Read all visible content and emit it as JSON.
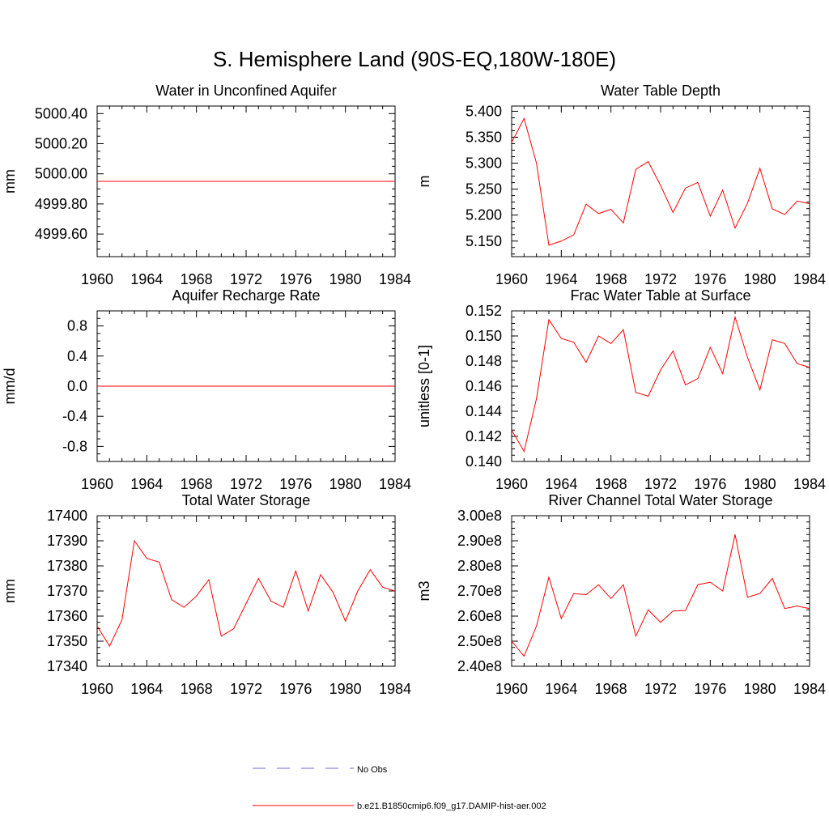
{
  "figure": {
    "title": "S. Hemisphere Land (90S-EQ,180W-180E)"
  },
  "legend": {
    "entries": [
      {
        "label": "No Obs",
        "style": "dashed",
        "color": "#6b6bd6"
      },
      {
        "label": "b.e21.B1850cmip6.f09_g17.DAMIP-hist-aer.002",
        "style": "solid",
        "color": "#ff0000"
      }
    ]
  },
  "chart_data": [
    {
      "type": "line",
      "title": "Water in Unconfined Aquifer",
      "ylabel": "mm",
      "xlim": [
        1960,
        1984
      ],
      "ylim": [
        4999.45,
        5000.45
      ],
      "xticks": [
        "1960",
        "1964",
        "1968",
        "1972",
        "1976",
        "1980",
        "1984"
      ],
      "yticks": [
        {
          "v": 4999.6,
          "label": "4999.60"
        },
        {
          "v": 4999.8,
          "label": "4999.80"
        },
        {
          "v": 5000.0,
          "label": "5000.00"
        },
        {
          "v": 5000.2,
          "label": "5000.20"
        },
        {
          "v": 5000.4,
          "label": "5000.40"
        }
      ],
      "series": [
        {
          "color": "#ff0000",
          "x": [
            1960,
            1984
          ],
          "y": [
            4999.95,
            4999.95
          ]
        }
      ]
    },
    {
      "type": "line",
      "title": "Water Table Depth",
      "ylabel": "m",
      "xlim": [
        1960,
        1984
      ],
      "ylim": [
        5.12,
        5.41
      ],
      "xticks": [
        "1960",
        "1964",
        "1968",
        "1972",
        "1976",
        "1980",
        "1984"
      ],
      "yticks": [
        {
          "v": 5.15,
          "label": "5.150"
        },
        {
          "v": 5.2,
          "label": "5.200"
        },
        {
          "v": 5.25,
          "label": "5.250"
        },
        {
          "v": 5.3,
          "label": "5.300"
        },
        {
          "v": 5.35,
          "label": "5.350"
        },
        {
          "v": 5.4,
          "label": "5.400"
        }
      ],
      "series": [
        {
          "color": "#ff0000",
          "x": [
            1960,
            1961,
            1962,
            1963,
            1964,
            1965,
            1966,
            1967,
            1968,
            1969,
            1970,
            1971,
            1972,
            1973,
            1974,
            1975,
            1976,
            1977,
            1978,
            1979,
            1980,
            1981,
            1982,
            1983,
            1984
          ],
          "y": [
            5.34,
            5.386,
            5.3,
            5.142,
            5.15,
            5.162,
            5.221,
            5.203,
            5.211,
            5.185,
            5.288,
            5.303,
            5.257,
            5.205,
            5.252,
            5.263,
            5.198,
            5.248,
            5.175,
            5.223,
            5.29,
            5.212,
            5.201,
            5.227,
            5.222
          ]
        }
      ]
    },
    {
      "type": "line",
      "title": "Aquifer Recharge Rate",
      "ylabel": "mm/d",
      "xlim": [
        1960,
        1984
      ],
      "ylim": [
        -1.0,
        1.0
      ],
      "xticks": [
        "1960",
        "1964",
        "1968",
        "1972",
        "1976",
        "1980",
        "1984"
      ],
      "yticks": [
        {
          "v": -0.8,
          "label": "-0.8"
        },
        {
          "v": -0.4,
          "label": "-0.4"
        },
        {
          "v": 0.0,
          "label": "0.0"
        },
        {
          "v": 0.4,
          "label": "0.4"
        },
        {
          "v": 0.8,
          "label": "0.8"
        }
      ],
      "series": [
        {
          "color": "#ff0000",
          "x": [
            1960,
            1984
          ],
          "y": [
            0.0,
            0.0
          ]
        }
      ]
    },
    {
      "type": "line",
      "title": "Frac Water Table at Surface",
      "ylabel": "unitless [0-1]",
      "xlim": [
        1960,
        1984
      ],
      "ylim": [
        0.14,
        0.152
      ],
      "xticks": [
        "1960",
        "1964",
        "1968",
        "1972",
        "1976",
        "1980",
        "1984"
      ],
      "yticks": [
        {
          "v": 0.14,
          "label": "0.140"
        },
        {
          "v": 0.142,
          "label": "0.142"
        },
        {
          "v": 0.144,
          "label": "0.144"
        },
        {
          "v": 0.146,
          "label": "0.146"
        },
        {
          "v": 0.148,
          "label": "0.148"
        },
        {
          "v": 0.15,
          "label": "0.150"
        },
        {
          "v": 0.152,
          "label": "0.152"
        }
      ],
      "series": [
        {
          "color": "#ff0000",
          "x": [
            1960,
            1961,
            1962,
            1963,
            1964,
            1965,
            1966,
            1967,
            1968,
            1969,
            1970,
            1971,
            1972,
            1973,
            1974,
            1975,
            1976,
            1977,
            1978,
            1979,
            1980,
            1981,
            1982,
            1983,
            1984
          ],
          "y": [
            0.1425,
            0.1408,
            0.145,
            0.1513,
            0.1498,
            0.1495,
            0.1479,
            0.15,
            0.1494,
            0.1505,
            0.1455,
            0.1452,
            0.1473,
            0.1488,
            0.1461,
            0.1466,
            0.1491,
            0.147,
            0.1515,
            0.1483,
            0.1457,
            0.1497,
            0.1494,
            0.1478,
            0.1475
          ]
        }
      ]
    },
    {
      "type": "line",
      "title": "Total Water Storage",
      "ylabel": "mm",
      "xlim": [
        1960,
        1984
      ],
      "ylim": [
        17340,
        17400
      ],
      "xticks": [
        "1960",
        "1964",
        "1968",
        "1972",
        "1976",
        "1980",
        "1984"
      ],
      "yticks": [
        {
          "v": 17340,
          "label": "17340"
        },
        {
          "v": 17350,
          "label": "17350"
        },
        {
          "v": 17360,
          "label": "17360"
        },
        {
          "v": 17370,
          "label": "17370"
        },
        {
          "v": 17380,
          "label": "17380"
        },
        {
          "v": 17390,
          "label": "17390"
        },
        {
          "v": 17400,
          "label": "17400"
        }
      ],
      "series": [
        {
          "color": "#ff0000",
          "x": [
            1960,
            1961,
            1962,
            1963,
            1964,
            1965,
            1966,
            1967,
            1968,
            1969,
            1970,
            1971,
            1972,
            1973,
            1974,
            1975,
            1976,
            1977,
            1978,
            1979,
            1980,
            1981,
            1982,
            1983,
            1984
          ],
          "y": [
            17356,
            17348,
            17358.5,
            17390,
            17383,
            17381.5,
            17366.5,
            17363.5,
            17368,
            17374.5,
            17352,
            17355,
            17365,
            17375,
            17366,
            17363.5,
            17378,
            17362,
            17376.5,
            17369.5,
            17358,
            17370,
            17378.5,
            17371.5,
            17370
          ]
        }
      ]
    },
    {
      "type": "line",
      "title": "River Channel Total Water Storage",
      "ylabel": "m3",
      "xlim": [
        1960,
        1984
      ],
      "ylim": [
        2.4,
        3.0
      ],
      "xticks": [
        "1960",
        "1964",
        "1968",
        "1972",
        "1976",
        "1980",
        "1984"
      ],
      "yticks": [
        {
          "v": 2.4,
          "label": "2.40e8"
        },
        {
          "v": 2.5,
          "label": "2.50e8"
        },
        {
          "v": 2.6,
          "label": "2.60e8"
        },
        {
          "v": 2.7,
          "label": "2.70e8"
        },
        {
          "v": 2.8,
          "label": "2.80e8"
        },
        {
          "v": 2.9,
          "label": "2.90e8"
        },
        {
          "v": 3.0,
          "label": "3.00e8"
        }
      ],
      "series": [
        {
          "color": "#ff0000",
          "x": [
            1960,
            1961,
            1962,
            1963,
            1964,
            1965,
            1966,
            1967,
            1968,
            1969,
            1970,
            1971,
            1972,
            1973,
            1974,
            1975,
            1976,
            1977,
            1978,
            1979,
            1980,
            1981,
            1982,
            1983,
            1984
          ],
          "y": [
            2.5,
            2.44,
            2.56,
            2.755,
            2.59,
            2.69,
            2.685,
            2.725,
            2.67,
            2.725,
            2.52,
            2.625,
            2.575,
            2.62,
            2.622,
            2.725,
            2.735,
            2.7,
            2.925,
            2.675,
            2.69,
            2.75,
            2.63,
            2.64,
            2.63
          ]
        }
      ]
    }
  ]
}
